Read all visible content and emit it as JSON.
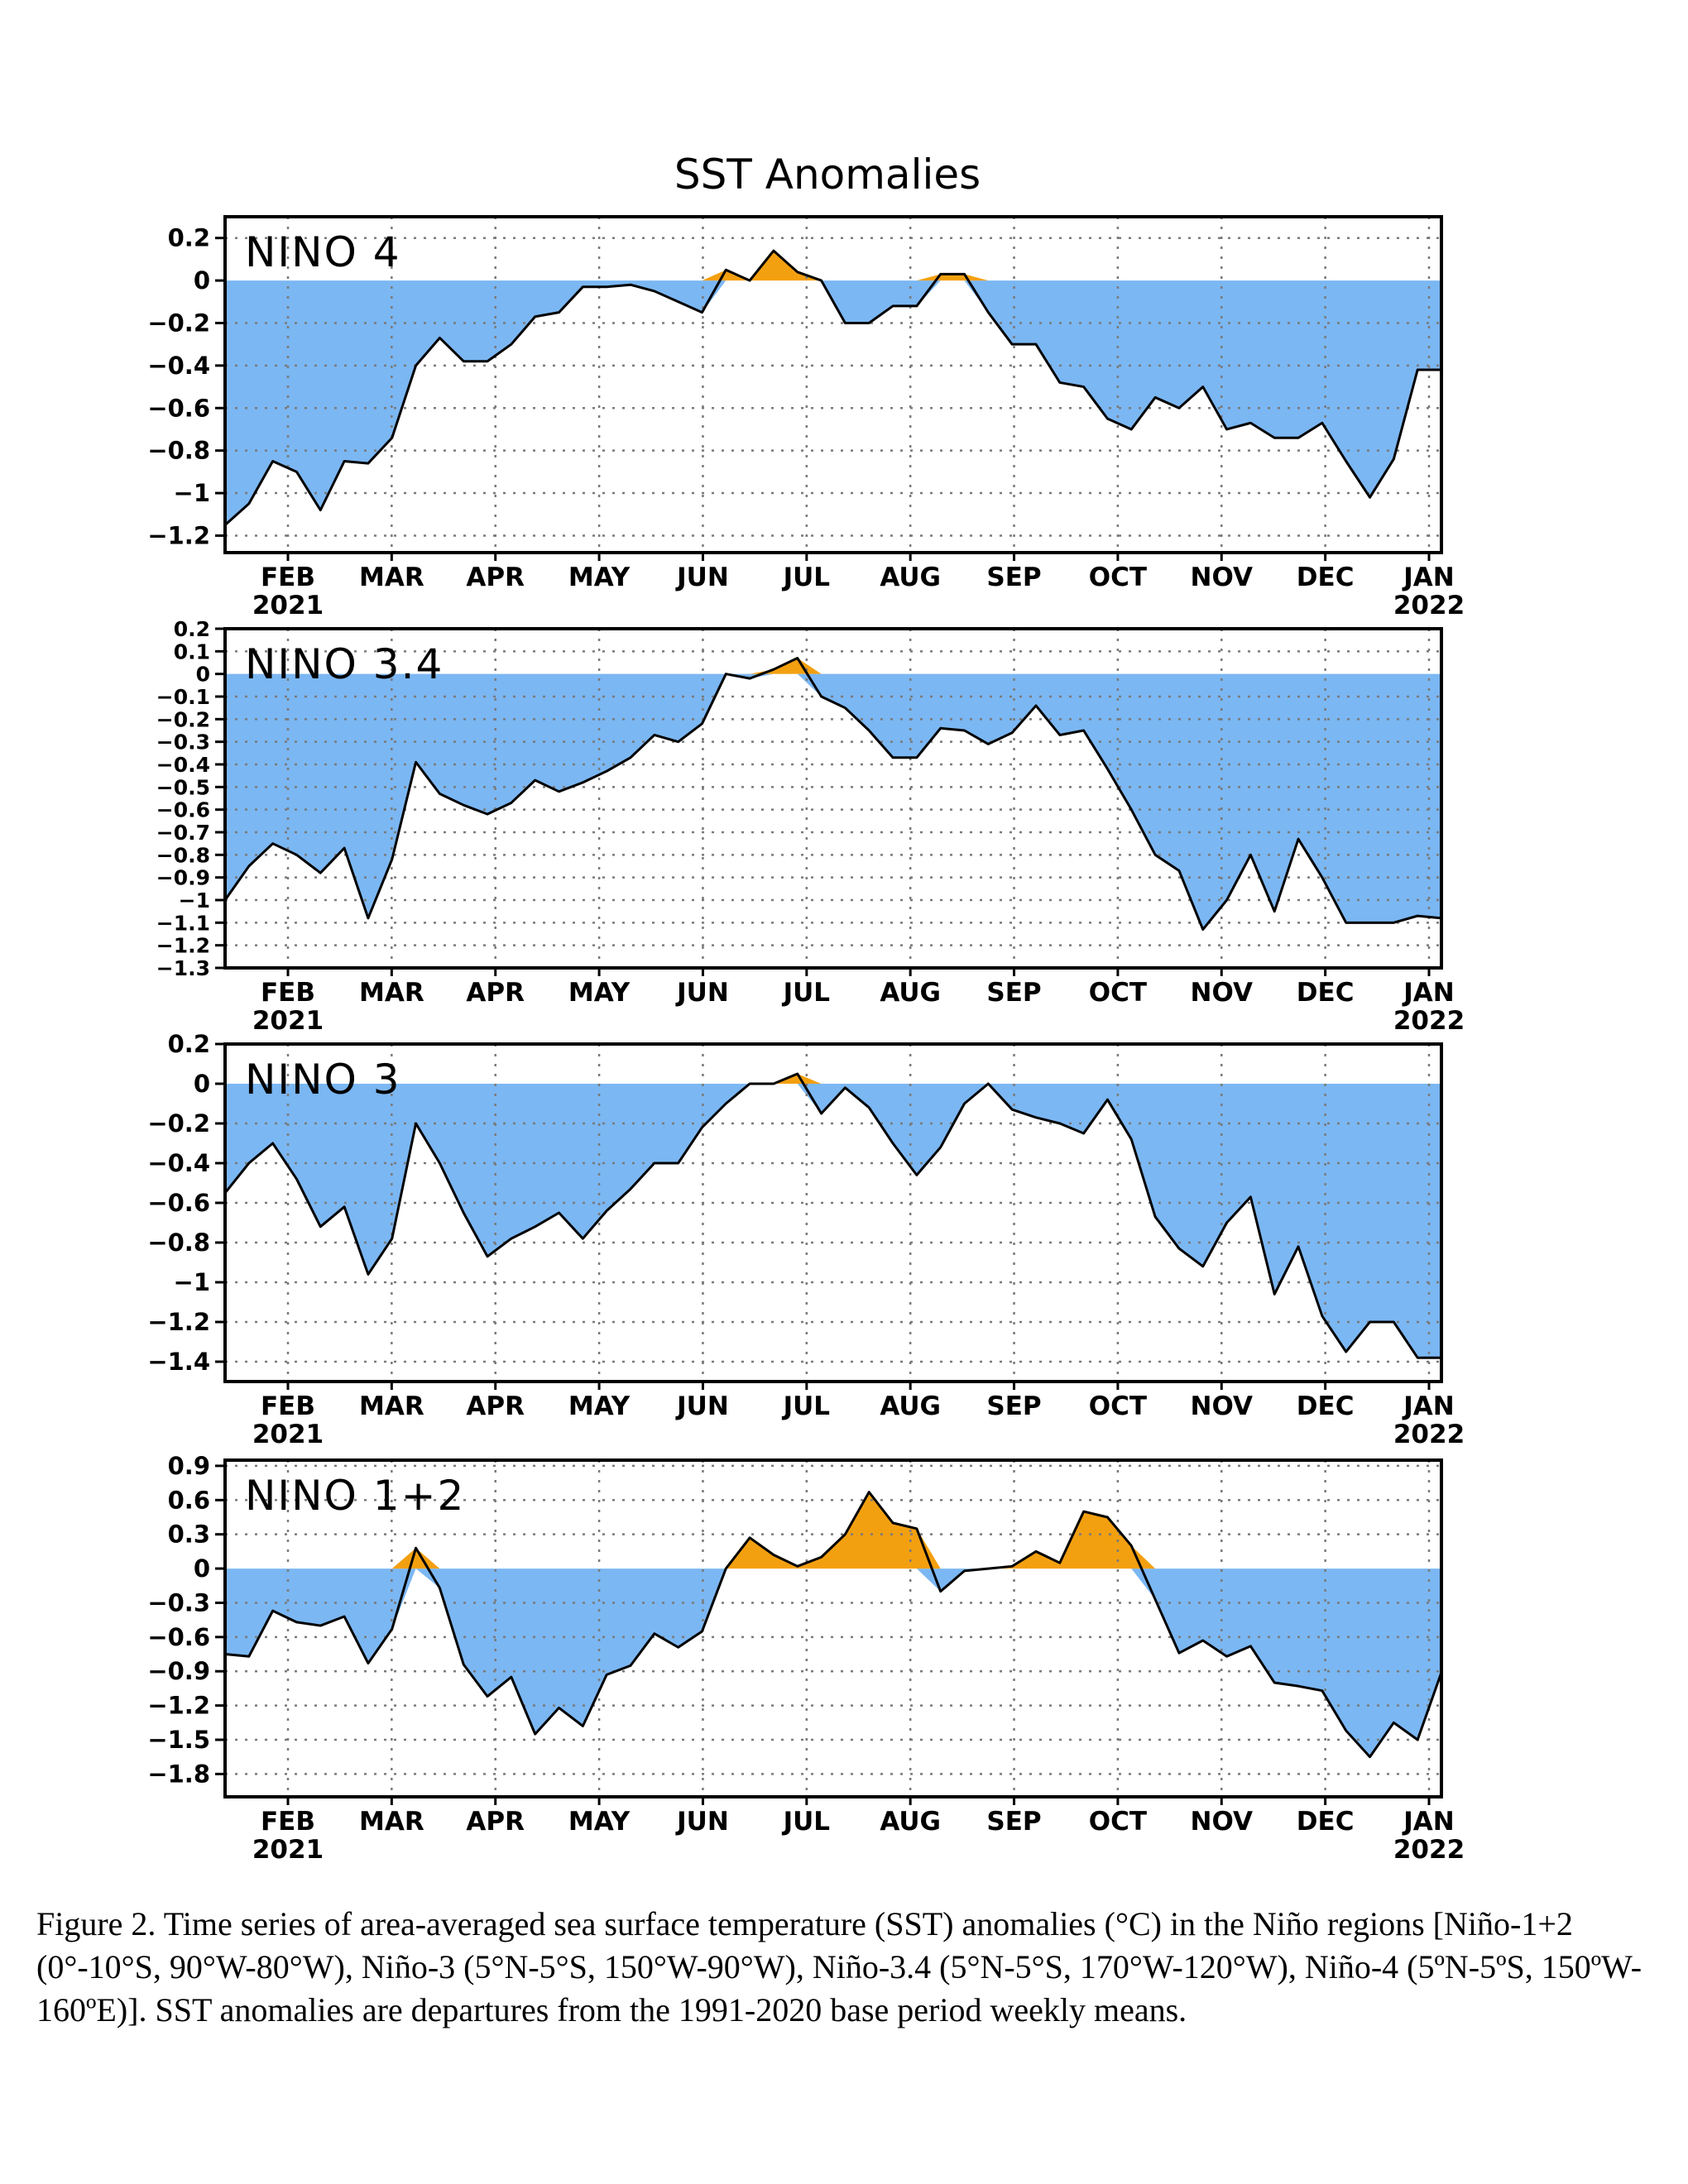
{
  "title": "SST Anomalies",
  "colors": {
    "negative": "#7bb7f3",
    "positive": "#f3a010",
    "line": "#000000"
  },
  "x_ticks": [
    {
      "label": "FEB",
      "sub": "2021"
    },
    {
      "label": "MAR",
      "sub": ""
    },
    {
      "label": "APR",
      "sub": ""
    },
    {
      "label": "MAY",
      "sub": ""
    },
    {
      "label": "JUN",
      "sub": ""
    },
    {
      "label": "JUL",
      "sub": ""
    },
    {
      "label": "AUG",
      "sub": ""
    },
    {
      "label": "SEP",
      "sub": ""
    },
    {
      "label": "OCT",
      "sub": ""
    },
    {
      "label": "NOV",
      "sub": ""
    },
    {
      "label": "DEC",
      "sub": ""
    },
    {
      "label": "JAN",
      "sub": "2022"
    }
  ],
  "chart_data": [
    {
      "type": "area",
      "region_label": "NINO  4",
      "ylim": [
        -1.28,
        0.3
      ],
      "yticks": [
        0.2,
        0,
        -0.2,
        -0.4,
        -0.6,
        -0.8,
        -1,
        -1.2
      ],
      "ytick_labels": [
        "0.2",
        "0",
        "−0.2",
        "−0.4",
        "−0.6",
        "−0.8",
        "−1",
        "−1.2"
      ],
      "grid": true,
      "values": [
        -1.15,
        -1.05,
        -0.85,
        -0.9,
        -1.08,
        -0.85,
        -0.86,
        -0.74,
        -0.4,
        -0.27,
        -0.38,
        -0.38,
        -0.3,
        -0.17,
        -0.15,
        -0.03,
        -0.03,
        -0.02,
        -0.05,
        -0.1,
        -0.15,
        0.05,
        0.0,
        0.14,
        0.04,
        0.0,
        -0.2,
        -0.2,
        -0.12,
        -0.12,
        0.03,
        0.03,
        -0.15,
        -0.3,
        -0.3,
        -0.48,
        -0.5,
        -0.65,
        -0.7,
        -0.55,
        -0.6,
        -0.5,
        -0.7,
        -0.67,
        -0.74,
        -0.74,
        -0.67,
        -0.85,
        -1.02,
        -0.84,
        -0.42,
        -0.42
      ]
    },
    {
      "type": "area",
      "region_label": "NINO  3.4",
      "ylim": [
        -1.3,
        0.2
      ],
      "yticks": [
        0.2,
        0.1,
        0,
        -0.1,
        -0.2,
        -0.3,
        -0.4,
        -0.5,
        -0.6,
        -0.7,
        -0.8,
        -0.9,
        -1,
        -1.1,
        -1.2,
        -1.3
      ],
      "ytick_labels": [
        "0.2",
        "0.1",
        "0",
        "−0.1",
        "−0.2",
        "−0.3",
        "−0.4",
        "−0.5",
        "−0.6",
        "−0.7",
        "−0.8",
        "−0.9",
        "−1",
        "−1.1",
        "−1.2",
        "−1.3"
      ],
      "grid": true,
      "values": [
        -1.0,
        -0.85,
        -0.75,
        -0.8,
        -0.88,
        -0.77,
        -1.08,
        -0.82,
        -0.39,
        -0.53,
        -0.58,
        -0.62,
        -0.57,
        -0.47,
        -0.52,
        -0.48,
        -0.43,
        -0.37,
        -0.27,
        -0.3,
        -0.22,
        0.0,
        -0.02,
        0.02,
        0.07,
        -0.1,
        -0.15,
        -0.25,
        -0.37,
        -0.37,
        -0.24,
        -0.25,
        -0.31,
        -0.26,
        -0.14,
        -0.27,
        -0.25,
        -0.42,
        -0.6,
        -0.8,
        -0.87,
        -1.13,
        -1.0,
        -0.8,
        -1.05,
        -0.73,
        -0.9,
        -1.1,
        -1.1,
        -1.1,
        -1.07,
        -1.08
      ]
    },
    {
      "type": "area",
      "region_label": "NINO  3",
      "ylim": [
        -1.5,
        0.2
      ],
      "yticks": [
        0.2,
        0,
        -0.2,
        -0.4,
        -0.6,
        -0.8,
        -1,
        -1.2,
        -1.4
      ],
      "ytick_labels": [
        "0.2",
        "0",
        "−0.2",
        "−0.4",
        "−0.6",
        "−0.8",
        "−1",
        "−1.2",
        "−1.4"
      ],
      "grid": true,
      "values": [
        -0.55,
        -0.4,
        -0.3,
        -0.48,
        -0.72,
        -0.62,
        -0.96,
        -0.78,
        -0.2,
        -0.4,
        -0.65,
        -0.87,
        -0.78,
        -0.72,
        -0.65,
        -0.78,
        -0.64,
        -0.53,
        -0.4,
        -0.4,
        -0.22,
        -0.1,
        0.0,
        0.0,
        0.05,
        -0.15,
        -0.02,
        -0.12,
        -0.3,
        -0.46,
        -0.32,
        -0.1,
        0.0,
        -0.13,
        -0.17,
        -0.2,
        -0.25,
        -0.08,
        -0.28,
        -0.67,
        -0.83,
        -0.92,
        -0.7,
        -0.57,
        -1.06,
        -0.82,
        -1.17,
        -1.35,
        -1.2,
        -1.2,
        -1.38,
        -1.38
      ]
    },
    {
      "type": "area",
      "region_label": "NINO  1+2",
      "ylim": [
        -2.0,
        0.95
      ],
      "yticks": [
        0.9,
        0.6,
        0.3,
        0,
        -0.3,
        -0.6,
        -0.9,
        -1.2,
        -1.5,
        -1.8
      ],
      "ytick_labels": [
        "0.9",
        "0.6",
        "0.3",
        "0",
        "−0.3",
        "−0.6",
        "−0.9",
        "−1.2",
        "−1.5",
        "−1.8"
      ],
      "grid": true,
      "values": [
        -0.75,
        -0.77,
        -0.37,
        -0.47,
        -0.5,
        -0.42,
        -0.83,
        -0.53,
        0.18,
        -0.17,
        -0.84,
        -1.12,
        -0.95,
        -1.45,
        -1.22,
        -1.38,
        -0.93,
        -0.85,
        -0.57,
        -0.69,
        -0.55,
        0.0,
        0.27,
        0.12,
        0.02,
        0.1,
        0.3,
        0.67,
        0.4,
        0.35,
        -0.2,
        -0.02,
        0.0,
        0.02,
        0.15,
        0.05,
        0.5,
        0.45,
        0.2,
        -0.27,
        -0.74,
        -0.63,
        -0.77,
        -0.68,
        -1.0,
        -1.03,
        -1.07,
        -1.42,
        -1.65,
        -1.35,
        -1.5,
        -0.91
      ]
    }
  ],
  "caption": "Figure 2. Time series of area-averaged sea surface temperature (SST) anomalies (°C) in the Niño regions [Niño-1+2 (0°-10°S, 90°W-80°W), Niño-3 (5°N-5°S, 150°W-90°W), Niño-3.4 (5°N-5°S, 170°W-120°W), Niño-4 (5ºN-5ºS, 150ºW-160ºE)]. SST anomalies are departures from the 1991-2020 base period weekly means."
}
